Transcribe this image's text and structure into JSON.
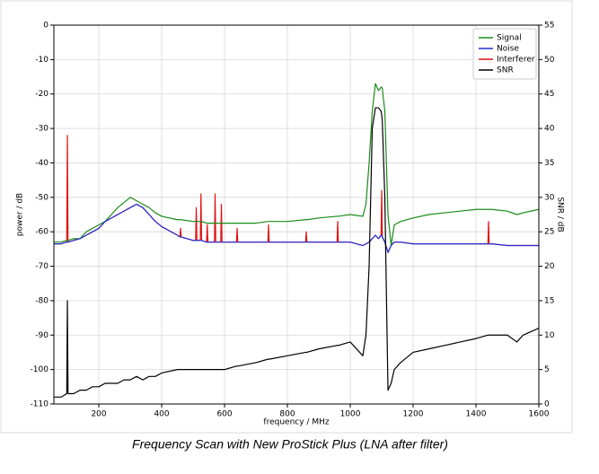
{
  "chart_data": {
    "type": "line",
    "caption": "Frequency Scan with New ProStick Plus (LNA after filter)",
    "xlabel": "frequency / MHz",
    "ylabel": "power / dB",
    "y2label": "SNR / dB",
    "x": [
      57,
      80,
      98,
      100,
      102,
      120,
      140,
      160,
      180,
      200,
      220,
      240,
      260,
      280,
      300,
      320,
      340,
      360,
      380,
      400,
      450,
      458,
      460,
      462,
      500,
      508,
      510,
      512,
      523,
      525,
      527,
      543,
      545,
      547,
      568,
      570,
      572,
      588,
      590,
      592,
      600,
      638,
      640,
      642,
      700,
      738,
      740,
      742,
      800,
      858,
      860,
      862,
      900,
      958,
      960,
      962,
      1000,
      1040,
      1050,
      1060,
      1070,
      1080,
      1090,
      1098,
      1100,
      1102,
      1110,
      1120,
      1130,
      1140,
      1160,
      1200,
      1250,
      1300,
      1350,
      1400,
      1438,
      1440,
      1442,
      1450,
      1500,
      1530,
      1550,
      1600
    ],
    "series": [
      {
        "name": "Signal",
        "color": "#1a8a1a",
        "axis": "y",
        "values": [
          -63,
          -63,
          -62.5,
          -62.5,
          -62.5,
          -62,
          -62,
          -60,
          -59,
          -58,
          -57,
          -55,
          -53,
          -51.5,
          -50,
          -51,
          -52,
          -53,
          -54.5,
          -55.5,
          -56.5,
          -56.5,
          -56.5,
          -56.5,
          -57,
          -57,
          -57,
          -57,
          -57,
          -57,
          -57,
          -57.5,
          -57.5,
          -57.5,
          -57.5,
          -57.5,
          -57.5,
          -57.5,
          -57.5,
          -57.5,
          -57.5,
          -57.5,
          -57.5,
          -57.5,
          -57.5,
          -57,
          -57,
          -57,
          -57,
          -56.5,
          -56.5,
          -56.5,
          -56,
          -55.5,
          -55.5,
          -55.5,
          -55,
          -55.5,
          -52,
          -40,
          -25,
          -17,
          -19,
          -18,
          -18,
          -18.5,
          -25,
          -55,
          -64,
          -58,
          -57,
          -56,
          -55,
          -54.5,
          -54,
          -53.5,
          -53.5,
          -53.5,
          -53.5,
          -53.5,
          -54,
          -55,
          -54.5,
          -53.5
        ]
      },
      {
        "name": "Noise",
        "color": "#1f2fd6",
        "axis": "y",
        "values": [
          -63.5,
          -63.5,
          -63,
          -63,
          -63,
          -62.5,
          -62,
          -61,
          -60,
          -59,
          -57,
          -56,
          -55,
          -54,
          -53,
          -52,
          -53,
          -55,
          -57,
          -58.5,
          -61,
          -61.5,
          -61.5,
          -61.5,
          -62.5,
          -62.5,
          -62.5,
          -62.5,
          -62.5,
          -62.5,
          -62.5,
          -63,
          -63,
          -63,
          -63,
          -63,
          -63,
          -63,
          -63,
          -63,
          -63,
          -63,
          -63,
          -63,
          -63,
          -63,
          -63,
          -63,
          -63,
          -63,
          -63,
          -63,
          -63,
          -63,
          -63,
          -63,
          -63,
          -64,
          -63.5,
          -63,
          -62,
          -61,
          -62,
          -61,
          -61,
          -61.5,
          -63,
          -66,
          -64,
          -63,
          -63,
          -63.5,
          -63.5,
          -63.5,
          -63.5,
          -63.5,
          -63.5,
          -63.5,
          -63.5,
          -63.5,
          -64,
          -64,
          -64,
          -64
        ]
      },
      {
        "name": "Interferer",
        "color": "#e01010",
        "axis": "y",
        "values": [
          -63.5,
          -63.5,
          -63,
          -32,
          -63,
          -62.5,
          -62,
          -61,
          -60,
          -59,
          -57,
          -56,
          -55,
          -54,
          -53,
          -52,
          -53,
          -55,
          -57,
          -58.5,
          -61,
          -61.5,
          -59,
          -61.5,
          -62.5,
          -62.5,
          -53,
          -62.5,
          -62.5,
          -49,
          -62.5,
          -63,
          -58,
          -63,
          -63,
          -49,
          -63,
          -63,
          -52,
          -63,
          -63,
          -63,
          -59,
          -63,
          -63,
          -63,
          -58,
          -63,
          -63,
          -63,
          -60,
          -63,
          -63,
          -63,
          -57,
          -63,
          -63,
          -64,
          -63.5,
          -63,
          -62,
          -61,
          -62,
          -61,
          -48,
          -61.5,
          -63,
          -66,
          -64,
          -63,
          -63,
          -63.5,
          -63.5,
          -63.5,
          -63.5,
          -63.5,
          -63.5,
          -57,
          -63.5,
          -63.5,
          -64,
          -64,
          -64,
          -64
        ]
      },
      {
        "name": "SNR",
        "color": "#000000",
        "axis": "y2",
        "values": [
          1,
          1,
          1.5,
          15,
          1.5,
          1.5,
          2,
          2,
          2.5,
          2.5,
          3,
          3,
          3,
          3.5,
          3.5,
          4,
          3.5,
          4,
          4,
          4.5,
          5,
          5,
          5,
          5,
          5,
          5,
          5,
          5,
          5,
          5,
          5,
          5,
          5,
          5,
          5,
          5,
          5,
          5,
          5,
          5,
          5,
          5.5,
          5.5,
          5.5,
          6,
          6.5,
          6.5,
          6.5,
          7,
          7.5,
          7.5,
          7.5,
          8,
          8.5,
          8.5,
          8.5,
          9,
          7,
          10,
          20,
          40,
          43,
          43,
          42.5,
          42,
          41,
          30,
          2,
          3,
          5,
          6,
          7.5,
          8,
          8.5,
          9,
          9.5,
          10,
          10,
          10,
          10,
          10,
          9,
          10,
          11
        ]
      }
    ],
    "xlim": [
      57,
      1600
    ],
    "xticks": [
      200,
      400,
      600,
      800,
      1000,
      1200,
      1400,
      1600
    ],
    "ylim": [
      -110,
      0
    ],
    "yticks": [
      -110,
      -100,
      -90,
      -80,
      -70,
      -60,
      -50,
      -40,
      -30,
      -20,
      -10,
      0
    ],
    "y2lim": [
      0,
      55
    ],
    "y2ticks": [
      0,
      5,
      10,
      15,
      20,
      25,
      30,
      35,
      40,
      45,
      50,
      55
    ],
    "grid": true,
    "legend": "upper right"
  }
}
